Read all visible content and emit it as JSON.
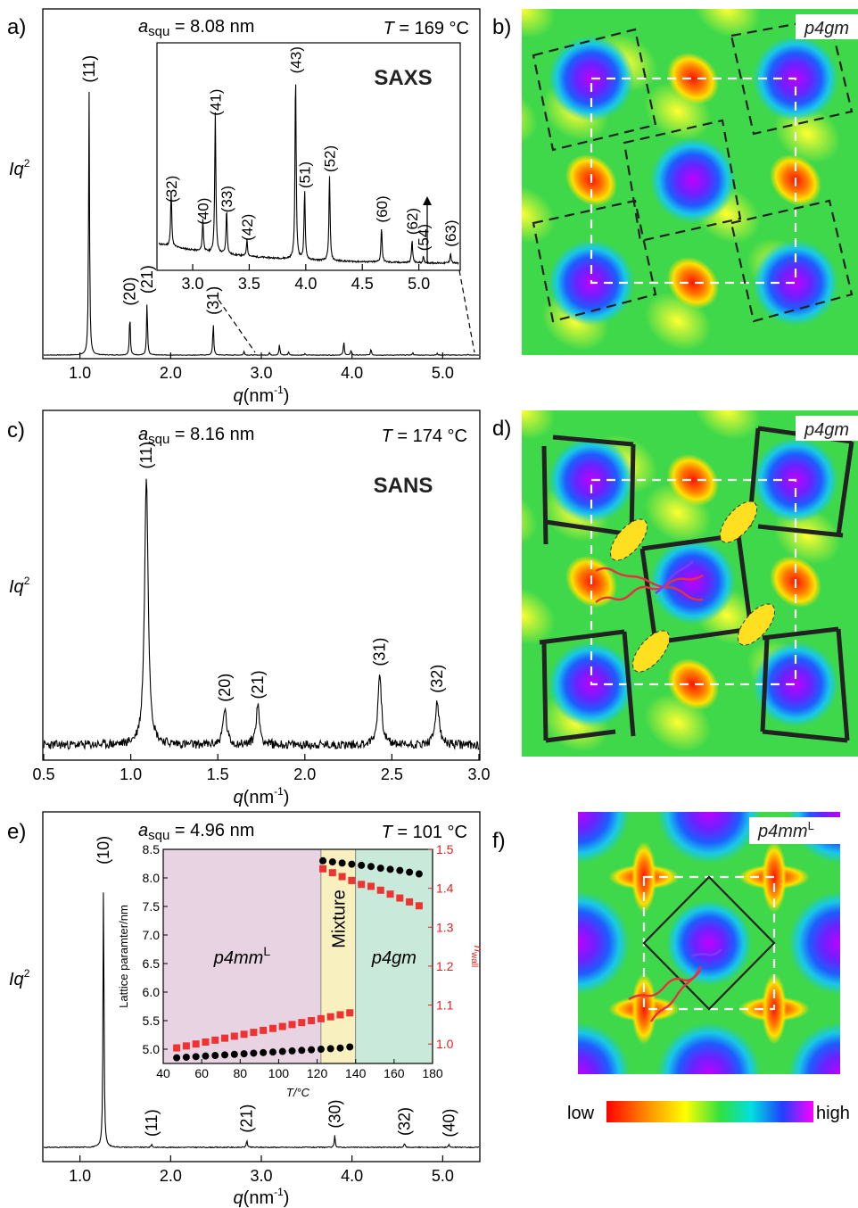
{
  "chart_data": [
    {
      "panel": "a)",
      "type": "line",
      "ylabel": "Iq",
      "ylabel_sup": "2",
      "xlabel": "q",
      "xlabel_unit": "(nm",
      "xlabel_unit_sup": "-1",
      "xlabel_unit_close": ")",
      "xlim": [
        0.6,
        5.4
      ],
      "xticks": [
        "1.0",
        "2.0",
        "3.0",
        "4.0",
        "5.0"
      ],
      "lattice_label": "a",
      "lattice_sub": "squ",
      "lattice_value": " = 8.08 nm",
      "temp_label": "T",
      "temp_value": " = 169 °C",
      "peaks": [
        {
          "q": 1.1,
          "h": 0.88,
          "label": "(11)"
        },
        {
          "q": 1.55,
          "h": 0.14,
          "label": "(20)"
        },
        {
          "q": 1.74,
          "h": 0.18,
          "label": "(21)"
        },
        {
          "q": 2.47,
          "h": 0.11,
          "label": "(31)"
        }
      ],
      "inset": {
        "label": "SAXS",
        "xlim": [
          2.7,
          5.35
        ],
        "xticks": [
          "3.0",
          "3.5",
          "4.0",
          "4.5",
          "5.0"
        ],
        "peaks": [
          {
            "q": 2.81,
            "h": 0.27,
            "label": "(32)"
          },
          {
            "q": 3.09,
            "h": 0.16,
            "label": "(40)"
          },
          {
            "q": 3.2,
            "h": 0.7,
            "label": "(41)"
          },
          {
            "q": 3.3,
            "h": 0.22,
            "label": "(33)"
          },
          {
            "q": 3.48,
            "h": 0.08,
            "label": "(42)"
          },
          {
            "q": 3.91,
            "h": 0.91,
            "label": "(43)"
          },
          {
            "q": 3.99,
            "h": 0.34,
            "label": "(51)"
          },
          {
            "q": 4.21,
            "h": 0.42,
            "label": "(52)"
          },
          {
            "q": 4.67,
            "h": 0.17,
            "label": "(60)"
          },
          {
            "q": 4.94,
            "h": 0.11,
            "label": "(62)"
          },
          {
            "q": 5.04,
            "h": 0.03,
            "label": "(54)"
          },
          {
            "q": 5.28,
            "h": 0.05,
            "label": "(63)"
          }
        ]
      }
    },
    {
      "panel": "c)",
      "type": "line",
      "ylabel": "Iq",
      "ylabel_sup": "2",
      "xlabel": "q",
      "xlabel_unit": "(nm",
      "xlabel_unit_sup": "-1",
      "xlabel_unit_close": ")",
      "xlim": [
        0.5,
        3.0
      ],
      "xticks": [
        "0.5",
        "1.0",
        "1.5",
        "2.0",
        "2.5",
        "3.0"
      ],
      "lattice_label": "a",
      "lattice_sub": "squ",
      "lattice_value": " = 8.16 nm",
      "temp_label": "T",
      "temp_value": " = 174 °C",
      "method": "SANS",
      "peaks": [
        {
          "q": 1.09,
          "h": 0.9,
          "label": "(11)"
        },
        {
          "q": 1.54,
          "h": 0.12,
          "label": "(20)"
        },
        {
          "q": 1.73,
          "h": 0.13,
          "label": "(21)"
        },
        {
          "q": 2.43,
          "h": 0.24,
          "label": "(31)"
        },
        {
          "q": 2.76,
          "h": 0.15,
          "label": "(32)"
        }
      ]
    },
    {
      "panel": "e)",
      "type": "line",
      "ylabel": "Iq",
      "ylabel_sup": "2",
      "xlabel": "q",
      "xlabel_unit": "(nm",
      "xlabel_unit_sup": "-1",
      "xlabel_unit_close": ")",
      "xlim": [
        0.6,
        5.4
      ],
      "xticks": [
        "1.0",
        "2.0",
        "3.0",
        "4.0",
        "5.0"
      ],
      "lattice_label": "a",
      "lattice_sub": "squ",
      "lattice_value": " = 4.96 nm",
      "temp_label": "T",
      "temp_value": " = 101 °C",
      "peaks": [
        {
          "q": 1.26,
          "h": 0.92,
          "label": "(10)"
        },
        {
          "q": 1.79,
          "h": 0.012,
          "label": "(11)"
        },
        {
          "q": 2.84,
          "h": 0.025,
          "label": "(21)"
        },
        {
          "q": 3.81,
          "h": 0.04,
          "label": "(30)"
        },
        {
          "q": 4.58,
          "h": 0.015,
          "label": "(32)"
        },
        {
          "q": 5.07,
          "h": 0.01,
          "label": "(40)"
        }
      ],
      "inset": {
        "type": "scatter",
        "xlabel": "T/°C",
        "ylabel": "Lattice paramter/nm",
        "y2label": "n",
        "y2label_sub": "wall",
        "xlim": [
          40,
          180
        ],
        "ylim": [
          4.75,
          8.5
        ],
        "y2lim": [
          0.95,
          1.5
        ],
        "xticks": [
          "40",
          "60",
          "80",
          "100",
          "120",
          "140",
          "160",
          "180"
        ],
        "yticks": [
          "5.0",
          "5.5",
          "6.0",
          "6.5",
          "7.0",
          "7.5",
          "8.0",
          "8.5"
        ],
        "y2ticks": [
          "1.0",
          "1.1",
          "1.2",
          "1.3",
          "1.4",
          "1.5"
        ],
        "regions": [
          {
            "from": 40,
            "to": 122,
            "label": "p4mm",
            "sup": "L",
            "color": "#e8d3e3"
          },
          {
            "from": 122,
            "to": 140,
            "label": "Mixture",
            "sup": "",
            "color": "#f8f0bf"
          },
          {
            "from": 140,
            "to": 180,
            "label": "p4gm",
            "sup": "",
            "color": "#c9e9da"
          }
        ],
        "lattice_series_color": "#000000",
        "nwall_series_color": "#ee3333",
        "lattice_series": [
          [
            47,
            4.85
          ],
          [
            52,
            4.86
          ],
          [
            57,
            4.87
          ],
          [
            62,
            4.88
          ],
          [
            67,
            4.89
          ],
          [
            72,
            4.9
          ],
          [
            77,
            4.91
          ],
          [
            82,
            4.92
          ],
          [
            87,
            4.93
          ],
          [
            92,
            4.94
          ],
          [
            97,
            4.95
          ],
          [
            102,
            4.96
          ],
          [
            107,
            4.97
          ],
          [
            112,
            4.98
          ],
          [
            117,
            4.99
          ],
          [
            122,
            5.0
          ],
          [
            127,
            5.01
          ],
          [
            132,
            5.02
          ],
          [
            137,
            5.04
          ],
          [
            123,
            8.3
          ],
          [
            128,
            8.28
          ],
          [
            133,
            8.26
          ],
          [
            138,
            8.24
          ],
          [
            143,
            8.22
          ],
          [
            148,
            8.2
          ],
          [
            153,
            8.17
          ],
          [
            158,
            8.15
          ],
          [
            163,
            8.13
          ],
          [
            168,
            8.1
          ],
          [
            173,
            8.07
          ]
        ],
        "nwall_series": [
          [
            47,
            0.99
          ],
          [
            52,
            0.995
          ],
          [
            57,
            1.0
          ],
          [
            62,
            1.005
          ],
          [
            67,
            1.01
          ],
          [
            72,
            1.015
          ],
          [
            77,
            1.02
          ],
          [
            82,
            1.025
          ],
          [
            87,
            1.03
          ],
          [
            92,
            1.035
          ],
          [
            97,
            1.04
          ],
          [
            102,
            1.045
          ],
          [
            107,
            1.05
          ],
          [
            112,
            1.055
          ],
          [
            117,
            1.06
          ],
          [
            122,
            1.065
          ],
          [
            127,
            1.07
          ],
          [
            132,
            1.075
          ],
          [
            137,
            1.08
          ],
          [
            123,
            1.45
          ],
          [
            128,
            1.44
          ],
          [
            133,
            1.43
          ],
          [
            138,
            1.42
          ],
          [
            143,
            1.41
          ],
          [
            148,
            1.405
          ],
          [
            153,
            1.395
          ],
          [
            158,
            1.385
          ],
          [
            163,
            1.375
          ],
          [
            168,
            1.365
          ],
          [
            173,
            1.355
          ]
        ]
      }
    }
  ],
  "maps": {
    "b": {
      "panel": "b)",
      "group": "p4gm"
    },
    "d": {
      "panel": "d)",
      "group": "p4gm"
    },
    "f": {
      "panel": "f)",
      "group": "p4mm",
      "group_sup": "L"
    }
  },
  "colorbar": {
    "low": "low",
    "high": "high"
  }
}
